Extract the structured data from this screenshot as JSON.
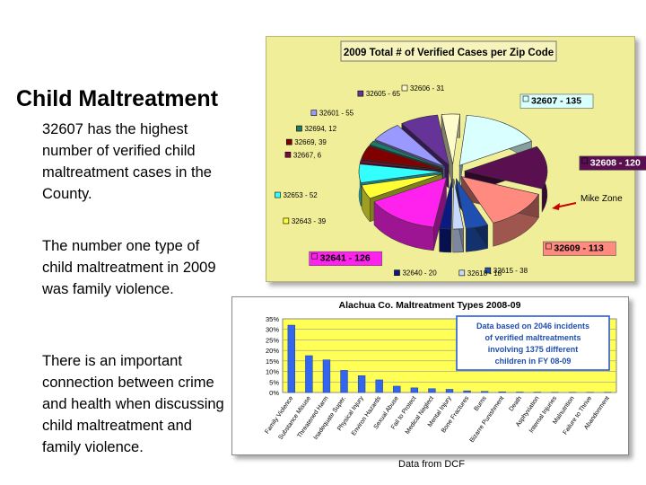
{
  "slide": {
    "title": "Child Maltreatment",
    "paragraphs": [
      "32607 has the highest number of verified child maltreatment cases in the County.",
      "The number one type of child maltreatment in 2009 was family violence.",
      "There is an important connection between crime and health when discussing child maltreatment and family violence."
    ],
    "source": "Data from DCF"
  },
  "chart_data": [
    {
      "type": "pie",
      "title": "2009 Total # of Verified Cases per Zip Code",
      "slices": [
        {
          "zip": "32607",
          "value": 135,
          "label": "32607 - 135",
          "color": "#d9ffff"
        },
        {
          "zip": "32608",
          "value": 120,
          "label": "32608 - 120",
          "color": "#5a1050"
        },
        {
          "zip": "32609",
          "value": 113,
          "label": "32609 - 113",
          "color": "#ff8a80"
        },
        {
          "zip": "32615",
          "value": 38,
          "label": "32615 - 38",
          "color": "#1f4fb0"
        },
        {
          "zip": "32618",
          "value": 18,
          "label": "32618 - 18",
          "color": "#c8d8ff"
        },
        {
          "zip": "32640",
          "value": 20,
          "label": "32640 - 20",
          "color": "#0a1a80"
        },
        {
          "zip": "32641",
          "value": 126,
          "label": "32641 - 126",
          "color": "#ff22ee"
        },
        {
          "zip": "32643",
          "value": 39,
          "label": "32643 - 39",
          "color": "#ffff33"
        },
        {
          "zip": "32653",
          "value": 52,
          "label": "32653 - 52",
          "color": "#33ffff"
        },
        {
          "zip": "32667",
          "value": 6,
          "label": "32667, 6",
          "color": "#7a0a3a"
        },
        {
          "zip": "32669",
          "value": 39,
          "label": "32669, 39",
          "color": "#800000"
        },
        {
          "zip": "32694",
          "value": 12,
          "label": "32694, 12",
          "color": "#1b7a6a"
        },
        {
          "zip": "32601",
          "value": 55,
          "label": "32601 - 55",
          "color": "#9999ff"
        },
        {
          "zip": "32605",
          "value": 65,
          "label": "32605 - 65",
          "color": "#663399"
        },
        {
          "zip": "32606",
          "value": 31,
          "label": "32606 - 31",
          "color": "#fffccc"
        }
      ],
      "annotation": "Mike Zone",
      "background": "#f1ee9a"
    },
    {
      "type": "bar",
      "title": "Alachua Co. Maltreatment Types 2008-09",
      "categories": [
        "Family Violence",
        "Substance Misuse",
        "Threatened Harm",
        "Inadequate Super.",
        "Physical Injury",
        "Environ Hazards",
        "Sexual Abuse",
        "Fail to Protect",
        "Medical Neglect",
        "Mental Injury",
        "Bone Fractures",
        "Burns",
        "Bizarre Punishment",
        "Death",
        "Asphyxiation",
        "Internal Injuries",
        "Malnutrition",
        "Failure to Thrive",
        "Abandonment"
      ],
      "values": [
        32,
        17.5,
        15.5,
        10.5,
        8,
        6,
        3,
        2.2,
        1.8,
        1.5,
        0.8,
        0.5,
        0.3,
        0.2,
        0.15,
        0.1,
        0.1,
        0.1,
        0.1
      ],
      "yticks": [
        "0%",
        "5%",
        "10%",
        "15%",
        "20%",
        "25%",
        "30%",
        "35%"
      ],
      "ylim": [
        0,
        35
      ],
      "bar_color": "#3366ee",
      "plot_background": "#ffff55",
      "annotation_lines": [
        "Data based on 2046 incidents",
        "of verified maltreatments",
        "involving 1375 different",
        "children in FY 08-09"
      ]
    }
  ]
}
